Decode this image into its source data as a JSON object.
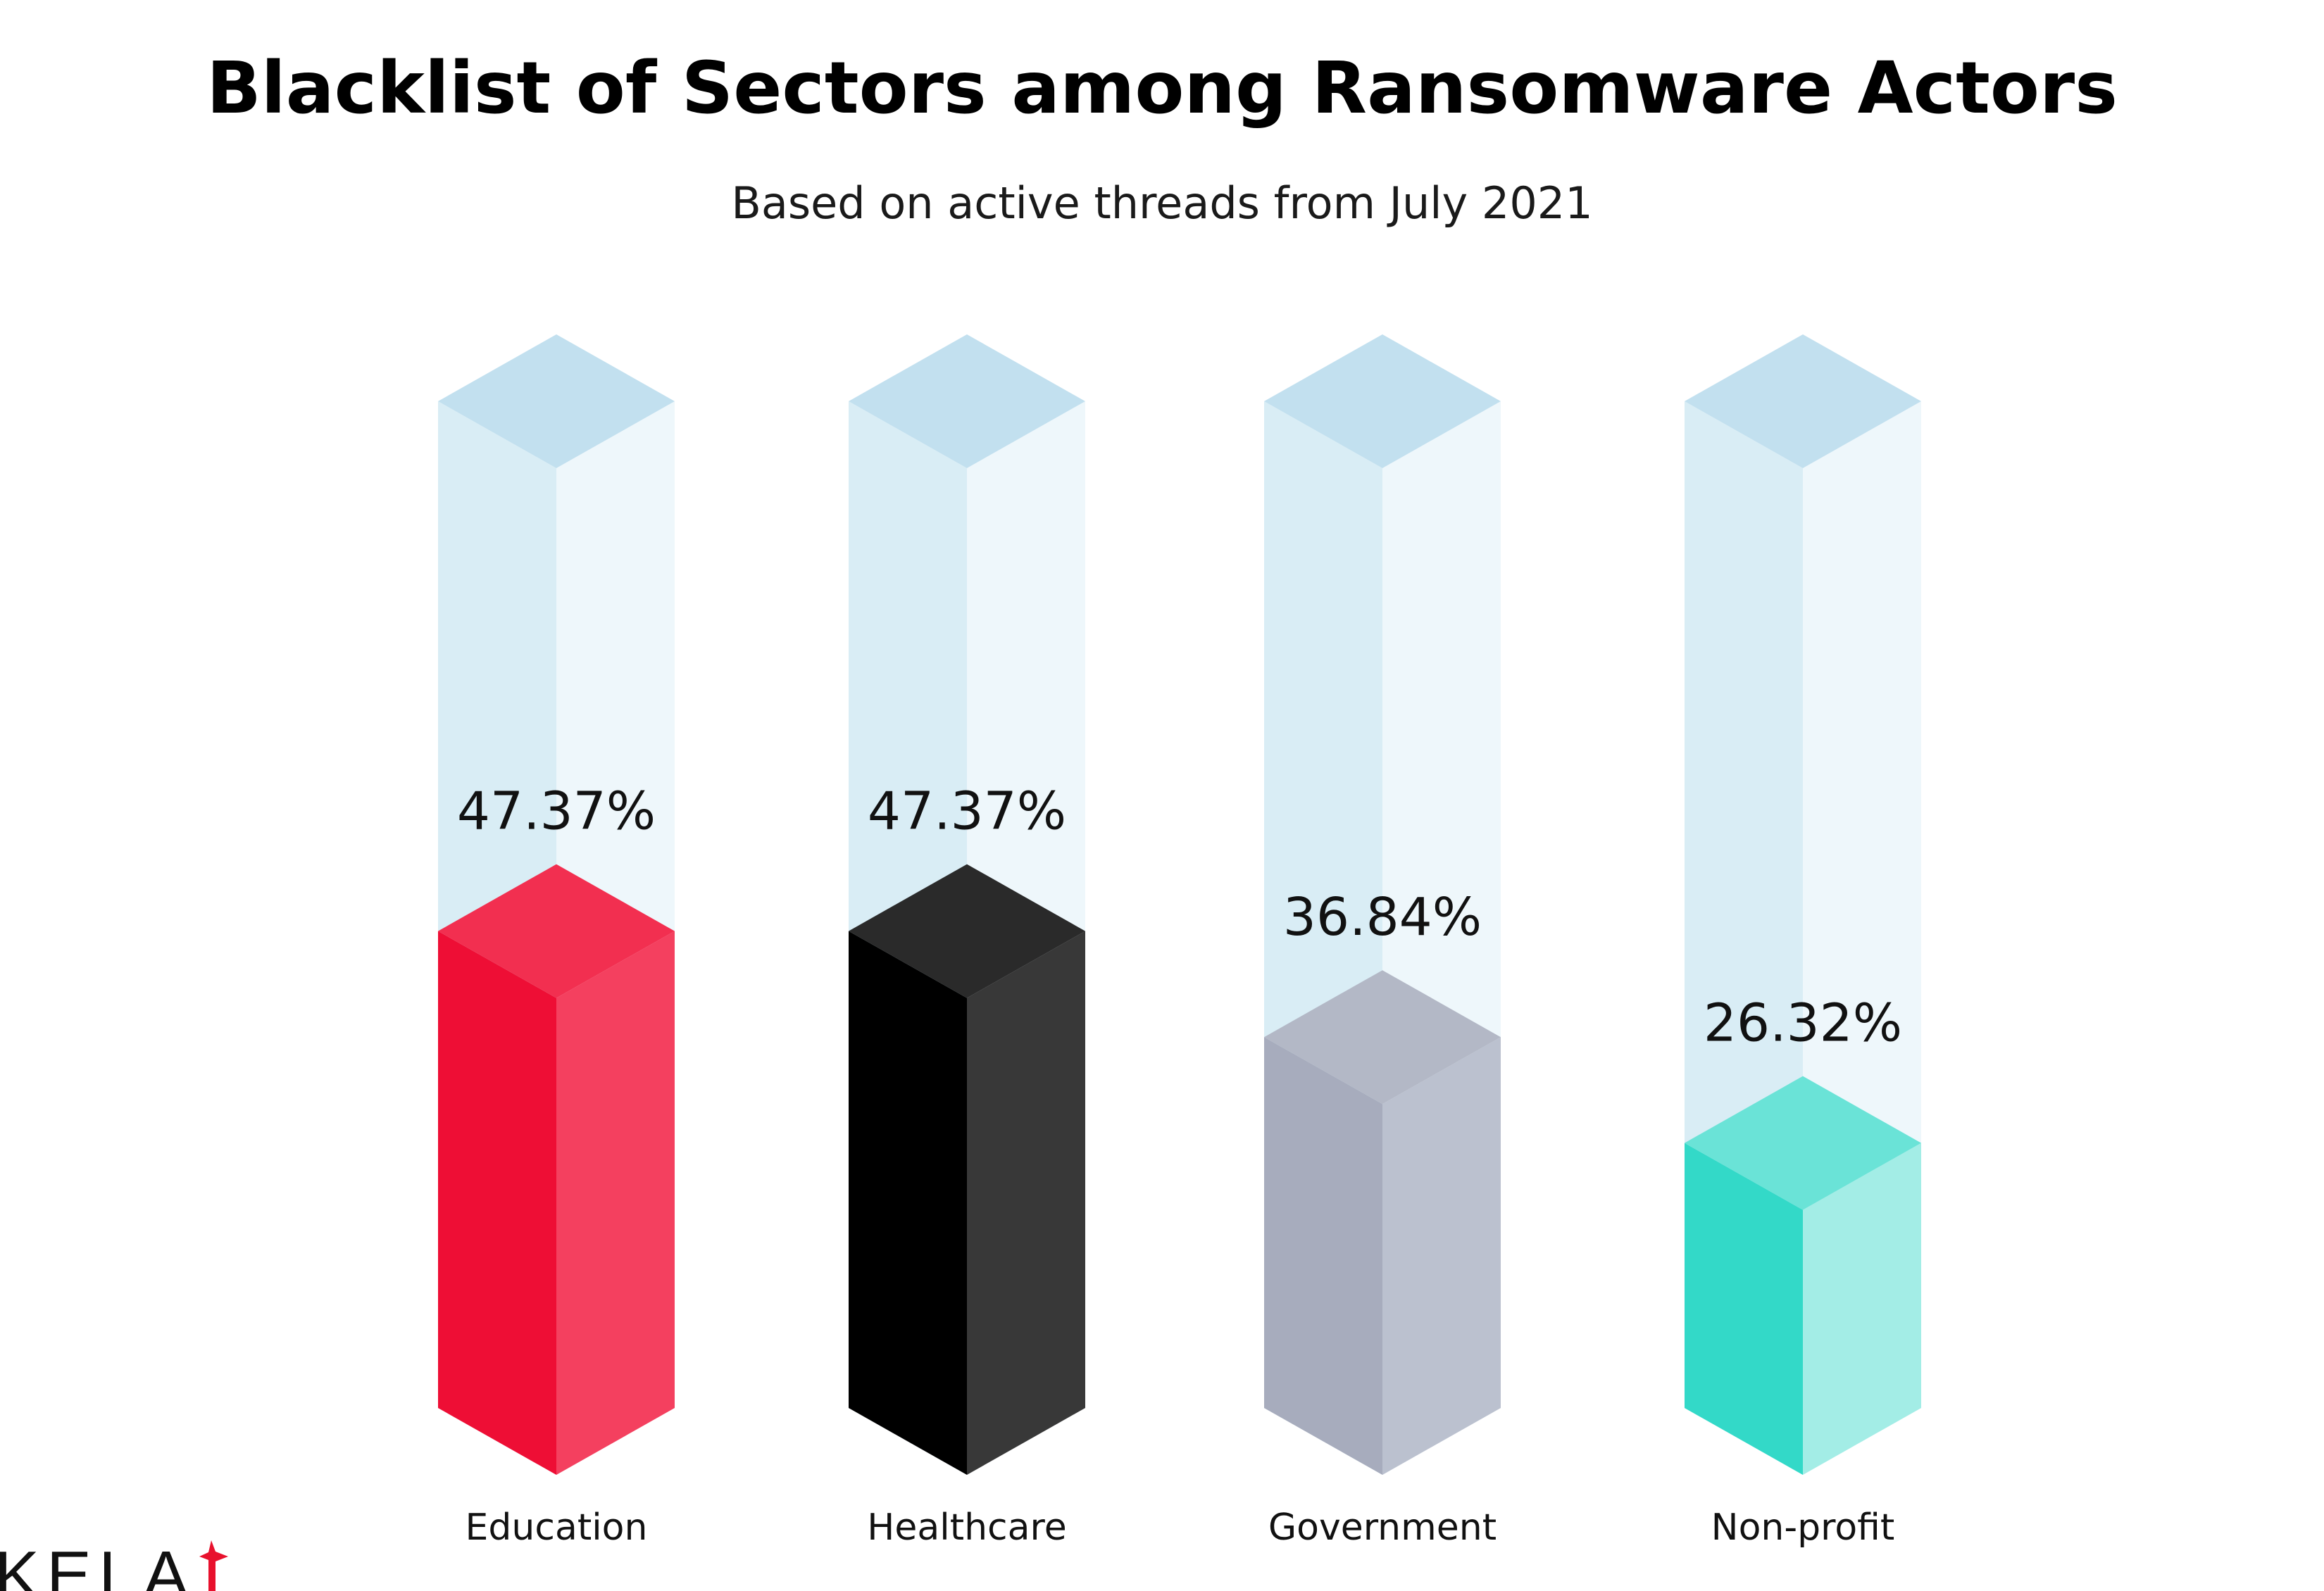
{
  "title": "Blacklist of Sectors among Ransomware Actors",
  "subtitle": "Based on active threads from July 2021",
  "logo": {
    "text": "KELA",
    "accent_color": "#e8112d"
  },
  "chart_data": {
    "type": "bar",
    "style": "isometric 3D columns",
    "title": "Blacklist of Sectors among Ransomware Actors",
    "subtitle": "Based on active threads from July 2021",
    "categories": [
      "Education",
      "Healthcare",
      "Government",
      "Non-profit"
    ],
    "values": [
      47.37,
      47.37,
      36.84,
      26.32
    ],
    "value_labels": [
      "47.37%",
      "47.37%",
      "36.84%",
      "26.32%"
    ],
    "unit": "%",
    "ylim": [
      0,
      100
    ],
    "grid": false,
    "legend": "none",
    "track_colors": {
      "top": "#c2e0ef",
      "left": "#d9edf5",
      "right": "#eef7fb"
    },
    "bar_colors": [
      {
        "left": "#ee0e35",
        "right": "#f4405f",
        "top": "#f22f50"
      },
      {
        "left": "#000000",
        "right": "#383838",
        "top": "#2a2a2a"
      },
      {
        "left": "#a7acbd",
        "right": "#bbc1cf",
        "top": "#b3b8c6"
      },
      {
        "left": "#33d9c8",
        "right": "#a3ede6",
        "top": "#6ae3d7"
      }
    ]
  }
}
